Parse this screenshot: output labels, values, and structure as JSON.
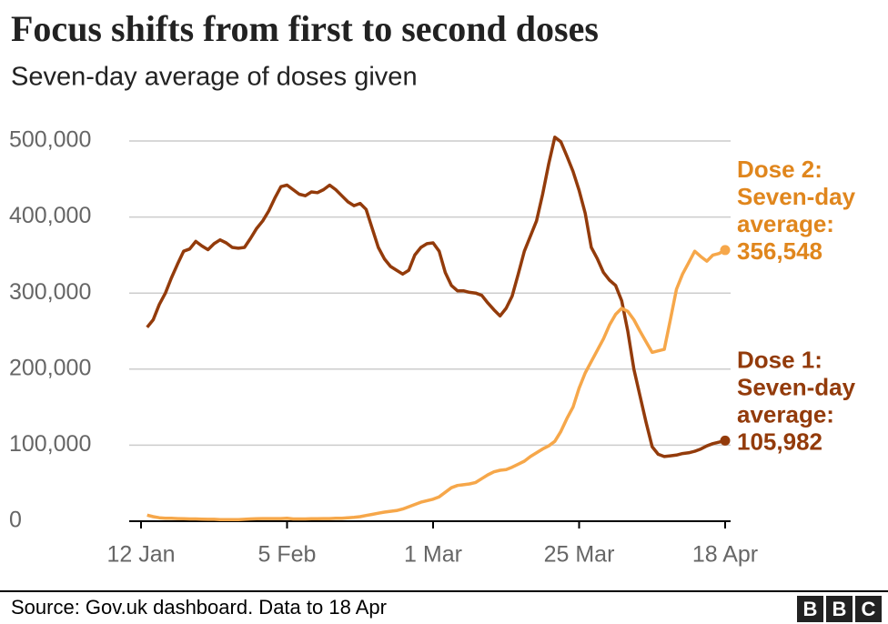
{
  "chart_data": {
    "type": "line",
    "title": "Focus shifts from first to second doses",
    "subtitle": "Seven-day average of doses given",
    "source": "Source: Gov.uk dashboard. Data to 18 Apr",
    "logo": [
      "B",
      "B",
      "C"
    ],
    "x": [
      "12 Jan",
      "13 Jan",
      "14 Jan",
      "15 Jan",
      "16 Jan",
      "17 Jan",
      "18 Jan",
      "19 Jan",
      "20 Jan",
      "21 Jan",
      "22 Jan",
      "23 Jan",
      "24 Jan",
      "25 Jan",
      "26 Jan",
      "27 Jan",
      "28 Jan",
      "29 Jan",
      "30 Jan",
      "31 Jan",
      "1 Feb",
      "2 Feb",
      "3 Feb",
      "4 Feb",
      "5 Feb",
      "6 Feb",
      "7 Feb",
      "8 Feb",
      "9 Feb",
      "10 Feb",
      "11 Feb",
      "12 Feb",
      "13 Feb",
      "14 Feb",
      "15 Feb",
      "16 Feb",
      "17 Feb",
      "18 Feb",
      "19 Feb",
      "20 Feb",
      "21 Feb",
      "22 Feb",
      "23 Feb",
      "24 Feb",
      "25 Feb",
      "26 Feb",
      "27 Feb",
      "28 Feb",
      "1 Mar",
      "2 Mar",
      "3 Mar",
      "4 Mar",
      "5 Mar",
      "6 Mar",
      "7 Mar",
      "8 Mar",
      "9 Mar",
      "10 Mar",
      "11 Mar",
      "12 Mar",
      "13 Mar",
      "14 Mar",
      "15 Mar",
      "16 Mar",
      "17 Mar",
      "18 Mar",
      "19 Mar",
      "20 Mar",
      "21 Mar",
      "22 Mar",
      "23 Mar",
      "24 Mar",
      "25 Mar",
      "26 Mar",
      "27 Mar",
      "28 Mar",
      "29 Mar",
      "30 Mar",
      "31 Mar",
      "1 Apr",
      "2 Apr",
      "3 Apr",
      "4 Apr",
      "5 Apr",
      "6 Apr",
      "7 Apr",
      "8 Apr",
      "9 Apr",
      "10 Apr",
      "11 Apr",
      "12 Apr",
      "13 Apr",
      "14 Apr",
      "15 Apr",
      "16 Apr",
      "17 Apr",
      "18 Apr"
    ],
    "xticks": [
      "12 Jan",
      "5 Feb",
      "1 Mar",
      "25 Mar",
      "18 Apr"
    ],
    "ylim": [
      0,
      500000
    ],
    "yticks": [
      0,
      {
        "value": 100000,
        "label": "100,000"
      },
      {
        "value": 200000,
        "label": "200,000"
      },
      {
        "value": 300000,
        "label": "300,000"
      },
      {
        "value": 400000,
        "label": "400,000"
      },
      {
        "value": 500000,
        "label": "500,000"
      }
    ],
    "grid": true,
    "series": [
      {
        "color": "#933b0b",
        "label_lines": [
          "Dose 1:",
          "Seven-day",
          "average:"
        ],
        "end_label": "105,982",
        "values": [
          null,
          255000,
          265000,
          285000,
          300000,
          320000,
          338000,
          355000,
          358000,
          368000,
          362000,
          357000,
          365000,
          370000,
          366000,
          360000,
          359000,
          360000,
          372000,
          385000,
          395000,
          408000,
          425000,
          440000,
          442000,
          436000,
          430000,
          428000,
          433000,
          432000,
          436000,
          442000,
          436000,
          428000,
          420000,
          415000,
          418000,
          410000,
          385000,
          360000,
          345000,
          335000,
          330000,
          325000,
          330000,
          350000,
          360000,
          365000,
          366000,
          355000,
          327000,
          310000,
          303000,
          303000,
          301000,
          300000,
          297000,
          287000,
          278000,
          270000,
          280000,
          296000,
          325000,
          355000,
          375000,
          395000,
          430000,
          470000,
          505000,
          499000,
          480000,
          460000,
          435000,
          405000,
          360000,
          345000,
          327000,
          317000,
          310000,
          290000,
          250000,
          200000,
          165000,
          130000,
          98000,
          88000,
          85000,
          86000,
          87000,
          89000,
          90000,
          92000,
          95000,
          99000,
          102000,
          104000,
          105982
        ]
      },
      {
        "color": "#f6a74a",
        "label_color": "#e0861d",
        "label_lines": [
          "Dose 2:",
          "Seven-day",
          "average:"
        ],
        "end_label": "356,548",
        "values": [
          null,
          8000,
          6000,
          4500,
          4000,
          3800,
          3500,
          3200,
          3000,
          3000,
          2800,
          2500,
          2500,
          2200,
          2000,
          2000,
          2200,
          2500,
          3000,
          3200,
          3500,
          3500,
          3500,
          3500,
          3800,
          3000,
          3000,
          3000,
          3200,
          3200,
          3500,
          3500,
          3800,
          4000,
          4500,
          5000,
          6000,
          7500,
          9000,
          10500,
          12000,
          13000,
          14000,
          16000,
          19000,
          22000,
          25000,
          27000,
          29000,
          32000,
          38000,
          44000,
          47000,
          48000,
          49000,
          51000,
          56000,
          61000,
          65000,
          67000,
          68000,
          71000,
          75000,
          79000,
          85000,
          90000,
          95000,
          99000,
          105000,
          118000,
          135000,
          150000,
          175000,
          195000,
          210000,
          225000,
          240000,
          258000,
          272000,
          280000,
          276000,
          265000,
          250000,
          236000,
          222000,
          224000,
          226000,
          265000,
          305000,
          325000,
          340000,
          355000,
          348000,
          342000,
          350000,
          352000,
          356548
        ]
      }
    ]
  }
}
